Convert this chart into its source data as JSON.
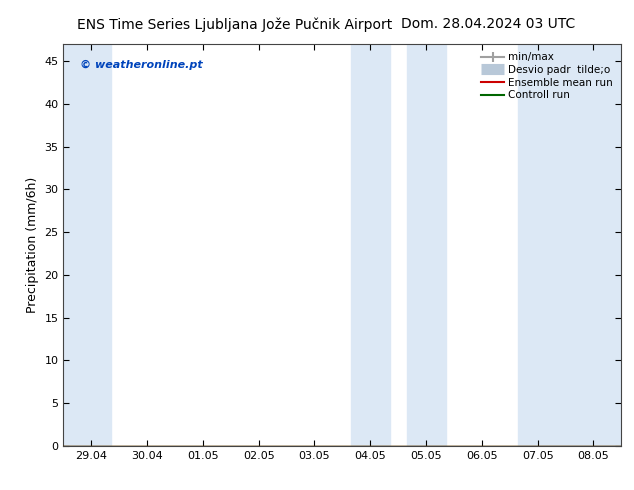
{
  "title_left": "ENS Time Series Ljubljana Jože Pučnik Airport",
  "title_right": "Dom. 28.04.2024 03 UTC",
  "ylabel": "Precipitation (mm/6h)",
  "watermark": "© weatheronline.pt",
  "ylim": [
    0,
    47
  ],
  "yticks": [
    0,
    5,
    10,
    15,
    20,
    25,
    30,
    35,
    40,
    45
  ],
  "xtick_labels": [
    "29.04",
    "30.04",
    "01.05",
    "02.05",
    "03.05",
    "04.05",
    "05.05",
    "06.05",
    "07.05",
    "08.05"
  ],
  "xtick_positions": [
    0,
    1,
    2,
    3,
    4,
    5,
    6,
    7,
    8,
    9
  ],
  "shade_bands": [
    [
      -0.5,
      0.35
    ],
    [
      4.65,
      5.35
    ],
    [
      5.65,
      6.35
    ],
    [
      7.65,
      9.5
    ]
  ],
  "shade_color": "#dce8f5",
  "bg_color": "#ffffff",
  "legend_labels": [
    "min/max",
    "Desvio padr  tilde;o",
    "Ensemble mean run",
    "Controll run"
  ],
  "legend_colors_line": [
    "#a0a0a0",
    "#c0cdd8",
    "#cc0000",
    "#006600"
  ],
  "title_fontsize": 10,
  "ylabel_fontsize": 9,
  "tick_fontsize": 8,
  "watermark_color": "#0044bb",
  "xlim": [
    -0.5,
    9.5
  ]
}
